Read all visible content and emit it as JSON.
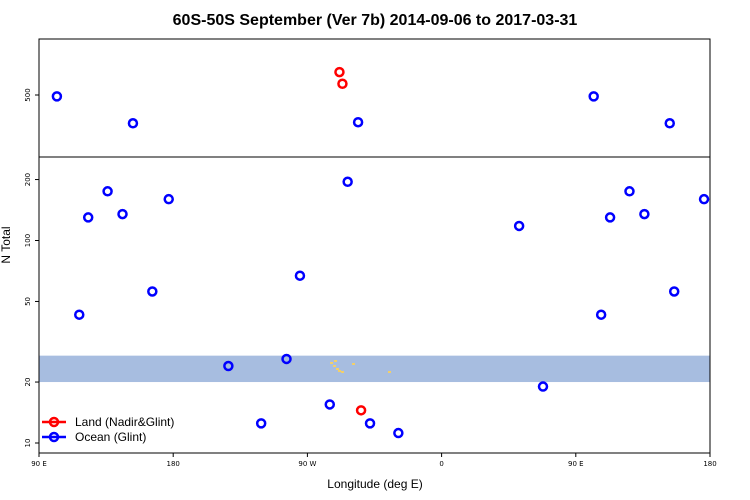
{
  "chart_data": {
    "type": "scatter",
    "title": "60S-50S September (Ver 7b)   2014-09-06 to 2017-03-31",
    "xlabel": "Longitude (deg E)",
    "ylabel": "N Total",
    "x_scale": "longitude, 90E to 180 repeating over 1.25 cycles",
    "x_ticks": [
      {
        "lon": 90,
        "label": "90 E"
      },
      {
        "lon": 180,
        "label": "180"
      },
      {
        "lon": 270,
        "label": "90 W"
      },
      {
        "lon": 360,
        "label": "0"
      },
      {
        "lon": 450,
        "label": "90 E"
      },
      {
        "lon": 540,
        "label": "180"
      }
    ],
    "y_scale": "log",
    "upper_panel": {
      "y_ticks": [
        {
          "value": 500,
          "label": "500"
        }
      ]
    },
    "lower_panel": {
      "y_ticks": [
        {
          "value": 10,
          "label": "10"
        },
        {
          "value": 20,
          "label": "20"
        },
        {
          "value": 50,
          "label": "50"
        },
        {
          "value": 100,
          "label": "100"
        },
        {
          "value": 200,
          "label": "200"
        }
      ],
      "shaded_band": {
        "from": 20,
        "to": 27,
        "color": "#a7bde0"
      }
    },
    "legend_position": "bottom-left",
    "series": [
      {
        "name": "Land (Nadir&Glint)",
        "color": "#ff0000",
        "points": [
          {
            "lon": 291.5,
            "n": 700,
            "panel": "upper"
          },
          {
            "lon": 293.5,
            "n": 590,
            "panel": "upper"
          },
          {
            "lon": 306,
            "n": 14.5,
            "panel": "lower"
          }
        ]
      },
      {
        "name": "Ocean (Glint)",
        "color": "#0000ff",
        "points": [
          {
            "lon": 102,
            "n": 490,
            "panel": "upper"
          },
          {
            "lon": 153,
            "n": 330,
            "panel": "upper"
          },
          {
            "lon": 304,
            "n": 335,
            "panel": "upper"
          },
          {
            "lon": 462,
            "n": 490,
            "panel": "upper"
          },
          {
            "lon": 513,
            "n": 330,
            "panel": "upper"
          },
          {
            "lon": 117,
            "n": 43,
            "panel": "lower"
          },
          {
            "lon": 123,
            "n": 130,
            "panel": "lower"
          },
          {
            "lon": 136,
            "n": 175,
            "panel": "lower"
          },
          {
            "lon": 146,
            "n": 135,
            "panel": "lower"
          },
          {
            "lon": 166,
            "n": 56,
            "panel": "lower"
          },
          {
            "lon": 177,
            "n": 160,
            "panel": "lower"
          },
          {
            "lon": 217,
            "n": 24,
            "panel": "lower"
          },
          {
            "lon": 239,
            "n": 12.5,
            "panel": "lower"
          },
          {
            "lon": 256,
            "n": 26,
            "panel": "lower"
          },
          {
            "lon": 265,
            "n": 67,
            "panel": "lower"
          },
          {
            "lon": 285,
            "n": 15.5,
            "panel": "lower"
          },
          {
            "lon": 297,
            "n": 195,
            "panel": "lower"
          },
          {
            "lon": 312,
            "n": 12.5,
            "panel": "lower"
          },
          {
            "lon": 331,
            "n": 11.2,
            "panel": "lower"
          },
          {
            "lon": 412,
            "n": 118,
            "panel": "lower"
          },
          {
            "lon": 428,
            "n": 19,
            "panel": "lower"
          },
          {
            "lon": 467,
            "n": 43,
            "panel": "lower"
          },
          {
            "lon": 473,
            "n": 130,
            "panel": "lower"
          },
          {
            "lon": 486,
            "n": 175,
            "panel": "lower"
          },
          {
            "lon": 496,
            "n": 135,
            "panel": "lower"
          },
          {
            "lon": 516,
            "n": 56,
            "panel": "lower"
          },
          {
            "lon": 536,
            "n": 160,
            "panel": "lower"
          }
        ]
      }
    ]
  }
}
